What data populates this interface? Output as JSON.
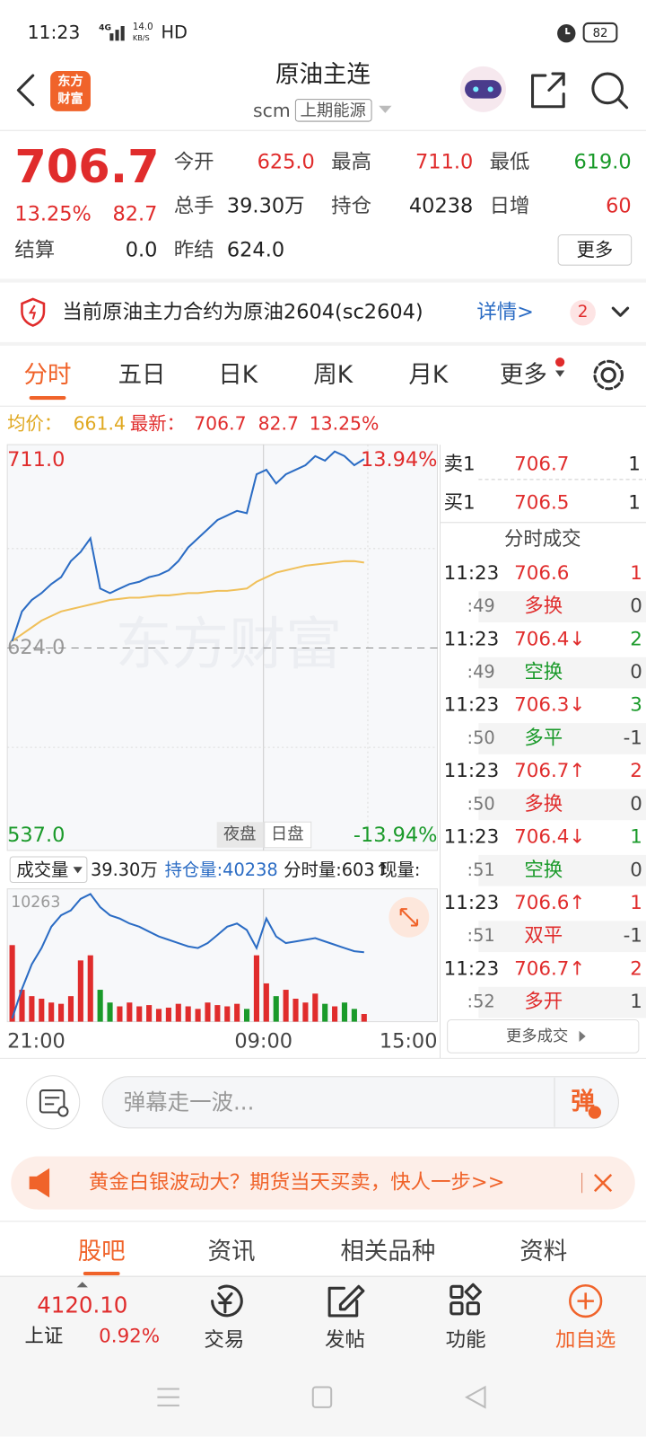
{
  "status": {
    "time": "11:23",
    "network": "4G",
    "speed": "14.0",
    "speed_unit": "KB/S",
    "hd": "HD",
    "battery": "82"
  },
  "header": {
    "logo_top": "东方",
    "logo_bottom": "财富",
    "title": "原油主连",
    "code": "scm",
    "exchange": "上期能源"
  },
  "quote": {
    "price": "706.7",
    "change_pct": "13.25%",
    "change": "82.7",
    "fields": [
      {
        "label": "今开",
        "value": "625.0",
        "color": "#e02c2c"
      },
      {
        "label": "最高",
        "value": "711.0",
        "color": "#e02c2c"
      },
      {
        "label": "最低",
        "value": "619.0",
        "color": "#1a9a2a"
      },
      {
        "label": "总手",
        "value": "39.30万",
        "color": "#222222"
      },
      {
        "label": "持仓",
        "value": "40238",
        "color": "#222222"
      },
      {
        "label": "日增",
        "value": "60",
        "color": "#e02c2c"
      }
    ],
    "settle_label": "结算",
    "settle": "0.0",
    "prev_settle_label": "昨结",
    "prev_settle": "624.0",
    "more": "更多"
  },
  "notice": {
    "text": "当前原油主力合约为原油2604(sc2604)",
    "link": "详情>",
    "badge": "2"
  },
  "tabs": {
    "items": [
      "分时",
      "五日",
      "日K",
      "周K",
      "月K",
      "更多"
    ],
    "active": 0
  },
  "info": {
    "avg_label": "均价：",
    "avg": "661.4",
    "last_label": "最新：",
    "last": "706.7",
    "change": "82.7",
    "change_pct": "13.25%"
  },
  "chart": {
    "type": "line",
    "watermark": "东方财富",
    "ylim": [
      537,
      711
    ],
    "yticks": [
      {
        "value": 711,
        "label": "711.0"
      },
      {
        "value": 624,
        "label": "624.0"
      },
      {
        "value": 537,
        "label": "537.0"
      }
    ],
    "y2lim": [
      -13.94,
      13.94
    ],
    "y2ticks": [
      {
        "value": 13.94,
        "label": "13.94%"
      },
      {
        "value": -13.94,
        "label": "-13.94%"
      }
    ],
    "session_labels": [
      "夜盘",
      "日盘"
    ],
    "xlabels": [
      "21:00",
      "09:00",
      "15:00"
    ],
    "series": [
      {
        "name": "最新",
        "color": "#2b6cc4",
        "values": [
          627,
          640,
          645,
          648,
          652,
          655,
          662,
          666,
          672,
          650,
          648,
          650,
          652,
          653,
          655,
          656,
          658,
          662,
          668,
          672,
          676,
          680,
          682,
          684,
          683,
          700,
          702,
          696,
          700,
          702,
          704,
          708,
          706,
          710,
          708,
          704,
          706.7
        ]
      },
      {
        "name": "均价",
        "color": "#f0c05a",
        "values": [
          627,
          630,
          633,
          636,
          638,
          640,
          641,
          642,
          643,
          644,
          645,
          645.5,
          646,
          646,
          646.5,
          647,
          647,
          647.5,
          648,
          648,
          648.5,
          649,
          649,
          649.5,
          650,
          653,
          655,
          657,
          658,
          659,
          660,
          660.5,
          661,
          661.5,
          662,
          662,
          661.4
        ]
      }
    ]
  },
  "volume": {
    "label": "成交量",
    "total": "39.30万",
    "oi_text": "持仓量:40238",
    "tick_vol_text": "分时量:603↑",
    "cur_text": "现量:",
    "ylim": [
      0,
      10263
    ],
    "yticks": [
      10263
    ],
    "values": [
      6000,
      2500,
      2000,
      1800,
      1500,
      1400,
      2000,
      4800,
      5200,
      2500,
      1500,
      1200,
      1500,
      1200,
      1300,
      1000,
      1100,
      1400,
      1200,
      1000,
      1500,
      1300,
      1200,
      1400,
      1000,
      5200,
      3000,
      2000,
      2500,
      1800,
      1500,
      2200,
      1400,
      1200,
      1500,
      1000,
      603
    ],
    "oi": {
      "color": "#2b6cc4",
      "lim": [
        36000,
        44000
      ],
      "values": [
        36200,
        38000,
        39500,
        40500,
        41800,
        42500,
        42800,
        43500,
        43800,
        43000,
        42500,
        42300,
        42000,
        41800,
        41500,
        41200,
        41000,
        40800,
        40600,
        40500,
        40800,
        41300,
        41800,
        42000,
        41600,
        40500,
        42300,
        41200,
        40800,
        40900,
        41000,
        41100,
        40900,
        40700,
        40500,
        40300,
        40238
      ]
    }
  },
  "order_book": [
    {
      "label": "卖1",
      "price": "706.7",
      "vol": "1"
    },
    {
      "label": "买1",
      "price": "706.5",
      "vol": "1"
    }
  ],
  "trades_title": "分时成交",
  "trades": [
    {
      "time": "11:23",
      "price": "706.6",
      "vol": "1",
      "vol_color": "#e02c2c",
      "sec": ":49",
      "type": "多换",
      "type_color": "#e02c2c",
      "count": "0"
    },
    {
      "time": "11:23",
      "price": "706.4↓",
      "vol": "2",
      "vol_color": "#1a9a2a",
      "sec": ":49",
      "type": "空换",
      "type_color": "#1a9a2a",
      "count": "0"
    },
    {
      "time": "11:23",
      "price": "706.3↓",
      "vol": "3",
      "vol_color": "#1a9a2a",
      "sec": ":50",
      "type": "多平",
      "type_color": "#1a9a2a",
      "count": "-1"
    },
    {
      "time": "11:23",
      "price": "706.7↑",
      "vol": "2",
      "vol_color": "#e02c2c",
      "sec": ":50",
      "type": "多换",
      "type_color": "#e02c2c",
      "count": "0"
    },
    {
      "time": "11:23",
      "price": "706.4↓",
      "vol": "1",
      "vol_color": "#1a9a2a",
      "sec": ":51",
      "type": "空换",
      "type_color": "#1a9a2a",
      "count": "0"
    },
    {
      "time": "11:23",
      "price": "706.6↑",
      "vol": "1",
      "vol_color": "#e02c2c",
      "sec": ":51",
      "type": "双平",
      "type_color": "#e02c2c",
      "count": "-1"
    },
    {
      "time": "11:23",
      "price": "706.7↑",
      "vol": "2",
      "vol_color": "#e02c2c",
      "sec": ":52",
      "type": "多开",
      "type_color": "#e02c2c",
      "count": "1"
    }
  ],
  "more_trades": "更多成交",
  "comment": {
    "placeholder": "弹幕走一波...",
    "danmaku": "弹"
  },
  "ad": {
    "text": "黄金白银波动大？期货当天买卖，快人一步>>"
  },
  "subtabs": {
    "items": [
      "股吧",
      "资讯",
      "相关品种",
      "资料"
    ],
    "active": 0
  },
  "bottom_nav": {
    "index_value": "4120.10",
    "index_name": "上证",
    "index_change": "0.92%",
    "items": [
      "交易",
      "发帖",
      "功能",
      "加自选"
    ]
  }
}
